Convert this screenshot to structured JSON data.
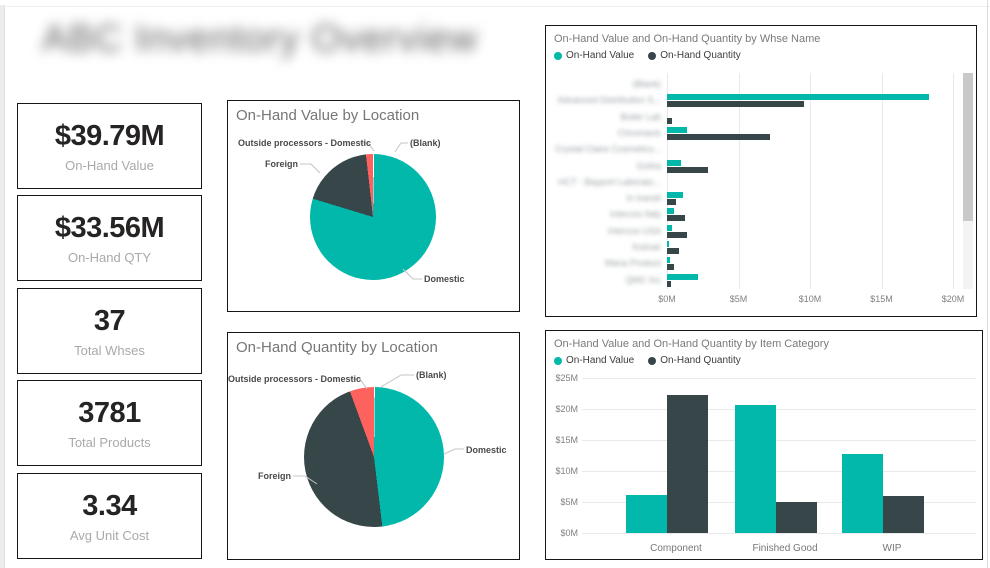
{
  "title": {
    "text": "ABC Inventory Overview",
    "blurred": true
  },
  "colors": {
    "value_series": "#01B8AA",
    "quantity_series": "#374649",
    "accent_red": "#FD625E",
    "grid": "#e9e9e9"
  },
  "kpis": [
    {
      "value": "$39.79M",
      "label": "On-Hand Value"
    },
    {
      "value": "$33.56M",
      "label": "On-Hand QTY"
    },
    {
      "value": "37",
      "label": "Total Whses"
    },
    {
      "value": "3781",
      "label": "Total Products"
    },
    {
      "value": "3.34",
      "label": "Avg Unit Cost"
    }
  ],
  "chart_data": [
    {
      "type": "pie",
      "title": "On-Hand Value by Location",
      "categories": [
        "(Blank)",
        "Domestic",
        "Foreign",
        "Outside processors - Domestic"
      ],
      "values_pct": [
        0.3,
        79.4,
        18.5,
        1.8
      ],
      "colors": [
        "#ffffff",
        "#01B8AA",
        "#374649",
        "#FD625E"
      ]
    },
    {
      "type": "pie",
      "title": "On-Hand Quantity by Location",
      "categories": [
        "(Blank)",
        "Domestic",
        "Foreign",
        "Outside processors - Domestic"
      ],
      "values_pct": [
        0.2,
        47.9,
        46.3,
        5.6
      ],
      "colors": [
        "#ffffff",
        "#01B8AA",
        "#374649",
        "#FD625E"
      ]
    },
    {
      "type": "bar",
      "orientation": "horizontal",
      "title": "On-Hand Value and On-Hand Quantity by Whse Name",
      "legend": [
        "On-Hand Value",
        "On-Hand Quantity"
      ],
      "categories_blurred": true,
      "categories": [
        "(Blank)",
        "Advanced Distribution S...",
        "Boiler Lab",
        "Chromavis",
        "Crystal Claire Cosmetics...",
        "Gotha",
        "HCT - Bayport Laborato...",
        "In transit",
        "Intercos Italy",
        "Intercos USA",
        "Kolmar",
        "Mana Product",
        "QMC Inc"
      ],
      "series": [
        {
          "name": "On-Hand Value",
          "values": [
            0,
            18.3,
            0,
            1.4,
            0,
            1.0,
            0,
            1.15,
            0.5,
            0.37,
            0.12,
            0.23,
            2.17
          ]
        },
        {
          "name": "On-Hand Quantity",
          "values": [
            0,
            9.6,
            0.35,
            7.2,
            0,
            2.9,
            0,
            0.6,
            1.25,
            1.37,
            0.85,
            0.49,
            0.3
          ]
        }
      ],
      "x_ticks": [
        "$0M",
        "$5M",
        "$10M",
        "$15M",
        "$20M"
      ],
      "xmax_m": 21.6,
      "unit": "$M"
    },
    {
      "type": "bar",
      "orientation": "vertical",
      "title": "On-Hand Value and On-Hand Quantity by Item Category",
      "legend": [
        "On-Hand Value",
        "On-Hand Quantity"
      ],
      "categories": [
        "Component",
        "Finished Good",
        "WIP"
      ],
      "series": [
        {
          "name": "On-Hand Value",
          "values": [
            6.1,
            20.6,
            12.8
          ]
        },
        {
          "name": "On-Hand Quantity",
          "values": [
            22.3,
            5.0,
            5.9
          ]
        }
      ],
      "y_ticks": [
        "$0M",
        "$5M",
        "$10M",
        "$15M",
        "$20M",
        "$25M"
      ],
      "ymax_m": 25,
      "unit": "$M"
    }
  ]
}
